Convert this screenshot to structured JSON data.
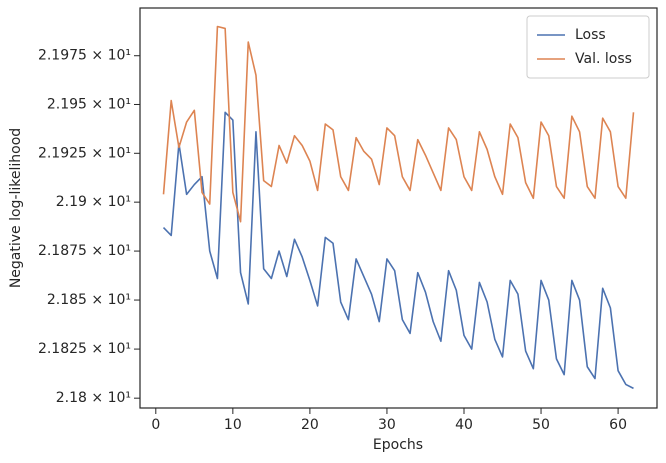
{
  "chart_data": {
    "type": "line",
    "xlabel": "Epochs",
    "ylabel": "Negative log-likelihood",
    "log_scale_y": true,
    "grid": false,
    "legend_position": "upper-right",
    "x": [
      1,
      2,
      3,
      4,
      5,
      6,
      7,
      8,
      9,
      10,
      11,
      12,
      13,
      14,
      15,
      16,
      17,
      18,
      19,
      20,
      21,
      22,
      23,
      24,
      25,
      26,
      27,
      28,
      29,
      30,
      31,
      32,
      33,
      34,
      35,
      36,
      37,
      38,
      39,
      40,
      41,
      42,
      43,
      44,
      45,
      46,
      47,
      48,
      49,
      50,
      51,
      52,
      53,
      54,
      55,
      56,
      57,
      58,
      59,
      60,
      61,
      62
    ],
    "series": [
      {
        "name": "Loss",
        "color": "#4c72b0",
        "values": [
          21.887,
          21.883,
          21.93,
          21.904,
          21.909,
          21.913,
          21.875,
          21.861,
          21.946,
          21.942,
          21.864,
          21.848,
          21.936,
          21.866,
          21.861,
          21.875,
          21.862,
          21.881,
          21.872,
          21.86,
          21.847,
          21.882,
          21.879,
          21.849,
          21.84,
          21.871,
          21.862,
          21.853,
          21.839,
          21.871,
          21.865,
          21.84,
          21.833,
          21.864,
          21.854,
          21.839,
          21.829,
          21.865,
          21.855,
          21.832,
          21.825,
          21.859,
          21.849,
          21.83,
          21.821,
          21.86,
          21.853,
          21.824,
          21.815,
          21.86,
          21.85,
          21.82,
          21.812,
          21.86,
          21.85,
          21.816,
          21.81,
          21.856,
          21.846,
          21.814,
          21.807,
          21.805
        ]
      },
      {
        "name": "Val. loss",
        "color": "#dd8452",
        "values": [
          21.904,
          21.952,
          21.928,
          21.941,
          21.947,
          21.905,
          21.899,
          21.99,
          21.989,
          21.905,
          21.89,
          21.982,
          21.965,
          21.911,
          21.908,
          21.929,
          21.92,
          21.934,
          21.929,
          21.921,
          21.906,
          21.94,
          21.937,
          21.913,
          21.906,
          21.933,
          21.926,
          21.922,
          21.909,
          21.938,
          21.934,
          21.913,
          21.906,
          21.932,
          21.924,
          21.915,
          21.906,
          21.938,
          21.932,
          21.913,
          21.906,
          21.936,
          21.927,
          21.913,
          21.904,
          21.94,
          21.933,
          21.91,
          21.902,
          21.941,
          21.934,
          21.908,
          21.902,
          21.944,
          21.936,
          21.908,
          21.902,
          21.943,
          21.936,
          21.908,
          21.902,
          21.946
        ]
      }
    ],
    "xlim": [
      -2.05,
      65.05
    ],
    "xticks": [
      0,
      10,
      20,
      30,
      40,
      50,
      60
    ],
    "ylim": [
      21.795,
      21.9995
    ],
    "yticks": [
      {
        "value": 21.8,
        "label": "2.18 × 10¹"
      },
      {
        "value": 21.825,
        "label": "2.1825 × 10¹"
      },
      {
        "value": 21.85,
        "label": "2.185 × 10¹"
      },
      {
        "value": 21.875,
        "label": "2.1875 × 10¹"
      },
      {
        "value": 21.9,
        "label": "2.19 × 10¹"
      },
      {
        "value": 21.925,
        "label": "2.1925 × 10¹"
      },
      {
        "value": 21.95,
        "label": "2.195 × 10¹"
      },
      {
        "value": 21.975,
        "label": "2.1975 × 10¹"
      }
    ]
  }
}
